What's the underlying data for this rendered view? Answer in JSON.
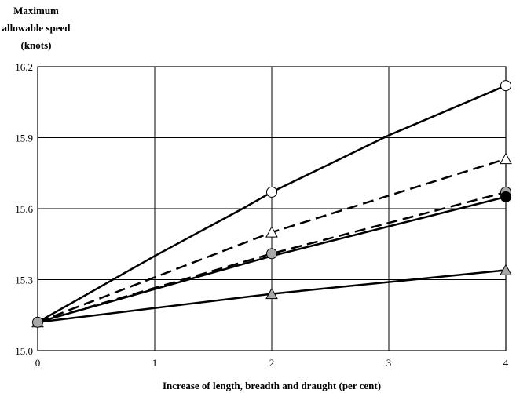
{
  "chart_data": {
    "type": "line",
    "title": "",
    "ylabel_lines": [
      "Maximum",
      "allowable speed",
      "(knots)"
    ],
    "xlabel": "Increase of length, breadth and draught (per cent)",
    "xlim": [
      0,
      4
    ],
    "ylim": [
      15.0,
      16.2
    ],
    "x_ticks": [
      "0",
      "1",
      "2",
      "3",
      "4"
    ],
    "y_ticks": [
      "15.0",
      "15.3",
      "15.6",
      "15.9",
      "16.2"
    ],
    "x_tick_values": [
      0,
      1,
      2,
      3,
      4
    ],
    "y_tick_values": [
      15.0,
      15.3,
      15.6,
      15.9,
      16.2
    ],
    "grid": true,
    "legend": "none",
    "series": [
      {
        "line": "solid",
        "marker": "circle-open",
        "points": [
          [
            0,
            15.12
          ],
          [
            1,
            15.4
          ],
          [
            1.75,
            15.6
          ],
          [
            2,
            15.67
          ],
          [
            2.5,
            15.79
          ],
          [
            3,
            15.91
          ],
          [
            4,
            16.12
          ]
        ],
        "marked_x": [
          2,
          4
        ]
      },
      {
        "line": "dashed",
        "marker": "triangle-open",
        "points": [
          [
            0,
            15.12
          ],
          [
            2,
            15.5
          ],
          [
            4,
            15.81
          ]
        ],
        "marked_x": [
          0,
          2,
          4
        ]
      },
      {
        "line": "dashed",
        "marker": "circle-gray",
        "points": [
          [
            0,
            15.12
          ],
          [
            2,
            15.41
          ],
          [
            4,
            15.67
          ]
        ],
        "marked_x": [
          0,
          2,
          4
        ]
      },
      {
        "line": "solid",
        "marker": "circle-black",
        "points": [
          [
            0,
            15.12
          ],
          [
            2,
            15.4
          ],
          [
            4,
            15.65
          ]
        ],
        "marked_x": [
          4
        ]
      },
      {
        "line": "solid",
        "marker": "triangle-gray",
        "points": [
          [
            0,
            15.12
          ],
          [
            2,
            15.24
          ],
          [
            4,
            15.34
          ]
        ],
        "marked_x": [
          2,
          4
        ]
      }
    ]
  }
}
